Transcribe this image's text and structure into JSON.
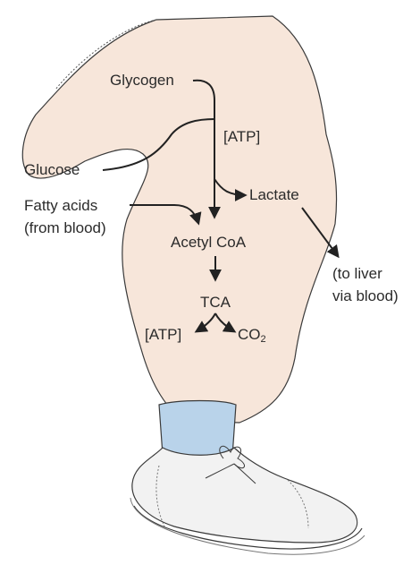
{
  "diagram": {
    "labels": {
      "glycogen": "Glycogen",
      "atp_top": "[ATP]",
      "glucose": "Glucose",
      "lactate": "Lactate",
      "fatty_acids": "Fatty acids",
      "from_blood": "(from blood)",
      "acetyl_coa": "Acetyl CoA",
      "to_liver": "(to liver",
      "via_blood": "via blood)",
      "tca": "TCA",
      "atp_bottom": "[ATP]",
      "co2_base": "CO",
      "co2_sub": "2"
    },
    "colors": {
      "leg_fill": "#f7e6da",
      "sock_fill": "#b9d3ea",
      "shoe_fill": "#f2f2f2",
      "line": "#333333"
    }
  }
}
